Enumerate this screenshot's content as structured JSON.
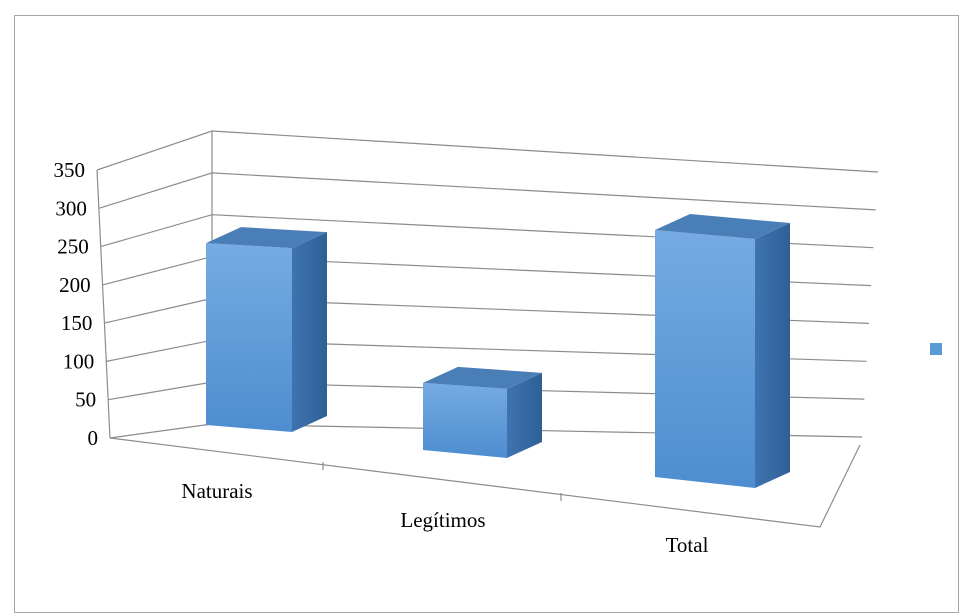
{
  "chart_data": {
    "type": "bar",
    "categories": [
      "Naturais",
      "Legítimos",
      "Total"
    ],
    "values": [
      235,
      85,
      320
    ],
    "yticks": [
      "0",
      "50",
      "100",
      "150",
      "200",
      "250",
      "300",
      "350"
    ],
    "ylim": [
      0,
      350
    ],
    "title": "",
    "xlabel": "",
    "ylabel": "",
    "grid": true,
    "legend": "right",
    "colors": {
      "front": "#5b9bd5",
      "top": "#4a7eb7",
      "side": "#3b6ca6",
      "grid": "#8c8c8c"
    }
  }
}
